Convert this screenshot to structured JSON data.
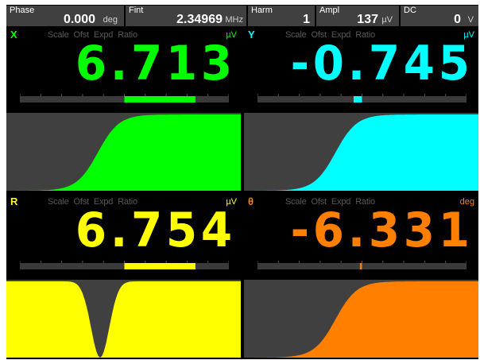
{
  "topbar": {
    "phase": {
      "label": "Phase",
      "value": "0.000",
      "unit": "deg"
    },
    "fint": {
      "label": "Fint",
      "value": "2.34969",
      "unit": "MHz"
    },
    "harm": {
      "label": "Harm",
      "value": "1"
    },
    "ampl": {
      "label": "Ampl",
      "value": "137",
      "unit": "µV"
    },
    "dc": {
      "label": "DC",
      "value": "0",
      "unit": "V"
    }
  },
  "channels": [
    {
      "name": "X",
      "scale": "Scale",
      "ofst": "Ofst",
      "expd": "Expd",
      "ratio": "Ratio",
      "unit": "µV",
      "value": "6.713",
      "color": "#00ff00",
      "meter_from": 0.5,
      "meter_to": 0.84,
      "trace": "step"
    },
    {
      "name": "Y",
      "scale": "Scale",
      "ofst": "Ofst",
      "expd": "Expd",
      "ratio": "Ratio",
      "unit": "µV",
      "value": "-0.745",
      "color": "#00ffff",
      "meter_from": 0.46,
      "meter_to": 0.5,
      "trace": "step"
    },
    {
      "name": "R",
      "scale": "Scale",
      "ofst": "Ofst",
      "expd": "Expd",
      "ratio": "Ratio",
      "unit": "µV",
      "value": "6.754",
      "color": "#ffff00",
      "meter_from": 0.5,
      "meter_to": 0.84,
      "trace": "dip"
    },
    {
      "name": "θ",
      "scale": "Scale",
      "ofst": "Ofst",
      "expd": "Expd",
      "ratio": "Ratio",
      "unit": "deg",
      "value": "-6.331",
      "color": "#ff8000",
      "meter_from": 0.49,
      "meter_to": 0.5,
      "trace": "step"
    }
  ]
}
